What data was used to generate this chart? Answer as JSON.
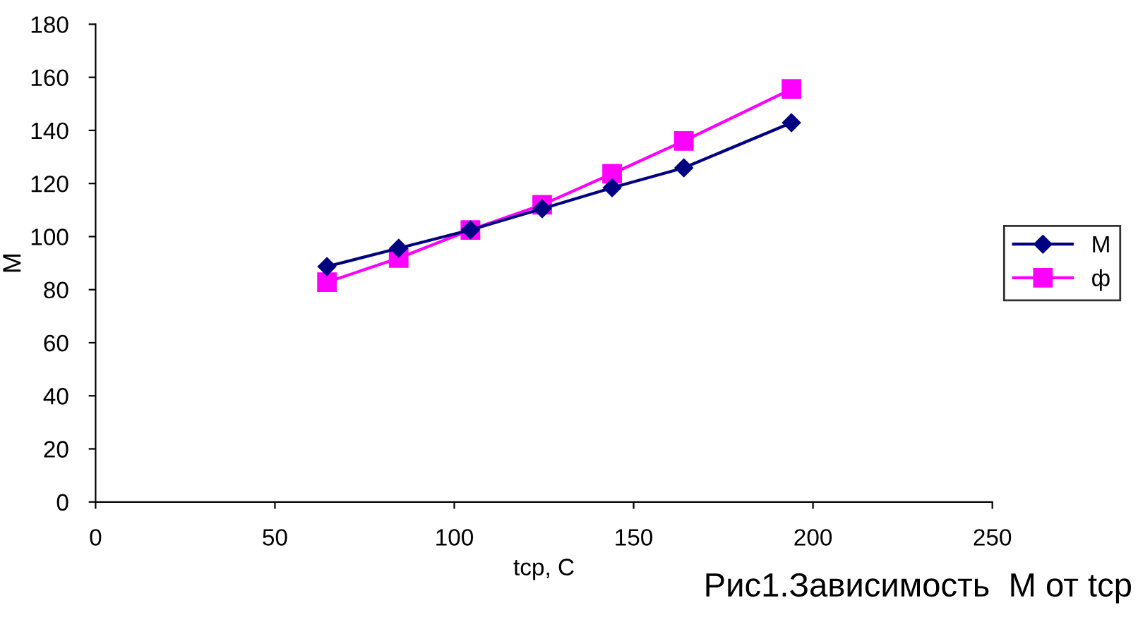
{
  "chart_data": {
    "type": "line",
    "title": "Рис1.Зависимость  М от tср",
    "xlabel": "tср, С",
    "ylabel": "М",
    "xlim": [
      0,
      250
    ],
    "xticks": [
      0,
      50,
      100,
      150,
      200,
      250
    ],
    "ylim": [
      0,
      180
    ],
    "yticks": [
      0,
      20,
      40,
      60,
      80,
      100,
      120,
      140,
      160,
      180
    ],
    "grid": false,
    "legend": "right",
    "series": [
      {
        "name": "М",
        "color": "#000080",
        "marker": "diamond",
        "x": [
          64.5,
          84.5,
          104.5,
          124.5,
          144,
          164,
          194
        ],
        "values": [
          88.7,
          95.6,
          102.5,
          110.5,
          118.4,
          125.9,
          142.9
        ]
      },
      {
        "name": "ф",
        "color": "#ff00ff",
        "marker": "square",
        "x": [
          64.5,
          84.5,
          104.5,
          124.5,
          144,
          164,
          194
        ],
        "values": [
          82.8,
          91.9,
          102.5,
          112,
          123.7,
          136,
          155.6
        ]
      }
    ]
  }
}
